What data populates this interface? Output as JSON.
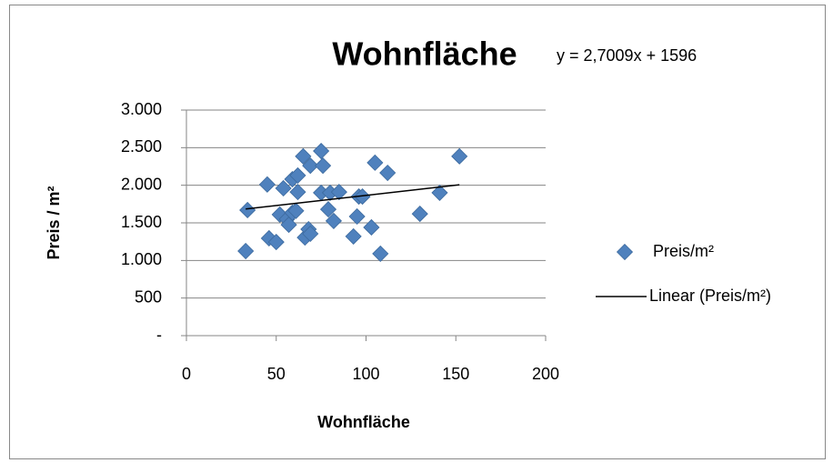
{
  "chart_data": {
    "type": "scatter",
    "title": "Wohnfläche",
    "annotation": "y = 2,7009x + 1596",
    "x_label": "Wohnfläche",
    "y_label": "Preis / m²",
    "xlim": [
      0,
      200
    ],
    "xticks": [
      0,
      50,
      100,
      150,
      200
    ],
    "ylim": [
      0,
      3000
    ],
    "yticks": [
      {
        "value": 0,
        "label": "-"
      },
      500,
      {
        "value": 1000,
        "label": "1.000"
      },
      {
        "value": 1500,
        "label": "1.500"
      },
      {
        "value": 2000,
        "label": "2.000"
      },
      {
        "value": 2500,
        "label": "2.500"
      },
      {
        "value": 3000,
        "label": "3.000"
      }
    ],
    "grid": true,
    "series": [
      {
        "name": "Preis/m²",
        "color": "#4f81bd",
        "x": [
          33,
          34,
          45,
          46,
          50,
          52,
          54,
          56,
          57,
          59,
          59,
          61,
          62,
          62,
          65,
          66,
          68,
          69,
          69,
          75,
          76,
          75,
          79,
          80,
          82,
          85,
          93,
          95,
          96,
          98,
          103,
          105,
          108,
          112,
          130,
          141,
          152
        ],
        "values": [
          1125,
          1670,
          2010,
          1295,
          1245,
          1610,
          1960,
          1550,
          1475,
          1635,
          2080,
          1660,
          2130,
          1910,
          2385,
          1305,
          1415,
          1355,
          2260,
          2455,
          2260,
          1900,
          1680,
          1900,
          1525,
          1910,
          1320,
          1585,
          1850,
          1850,
          1440,
          2300,
          1090,
          2165,
          1620,
          1900,
          2385
        ]
      },
      {
        "name": "Linear (Preis/m²)",
        "color": "#000000",
        "trendline": true,
        "x": [
          33,
          152
        ],
        "values": [
          1685,
          2006
        ]
      }
    ]
  }
}
